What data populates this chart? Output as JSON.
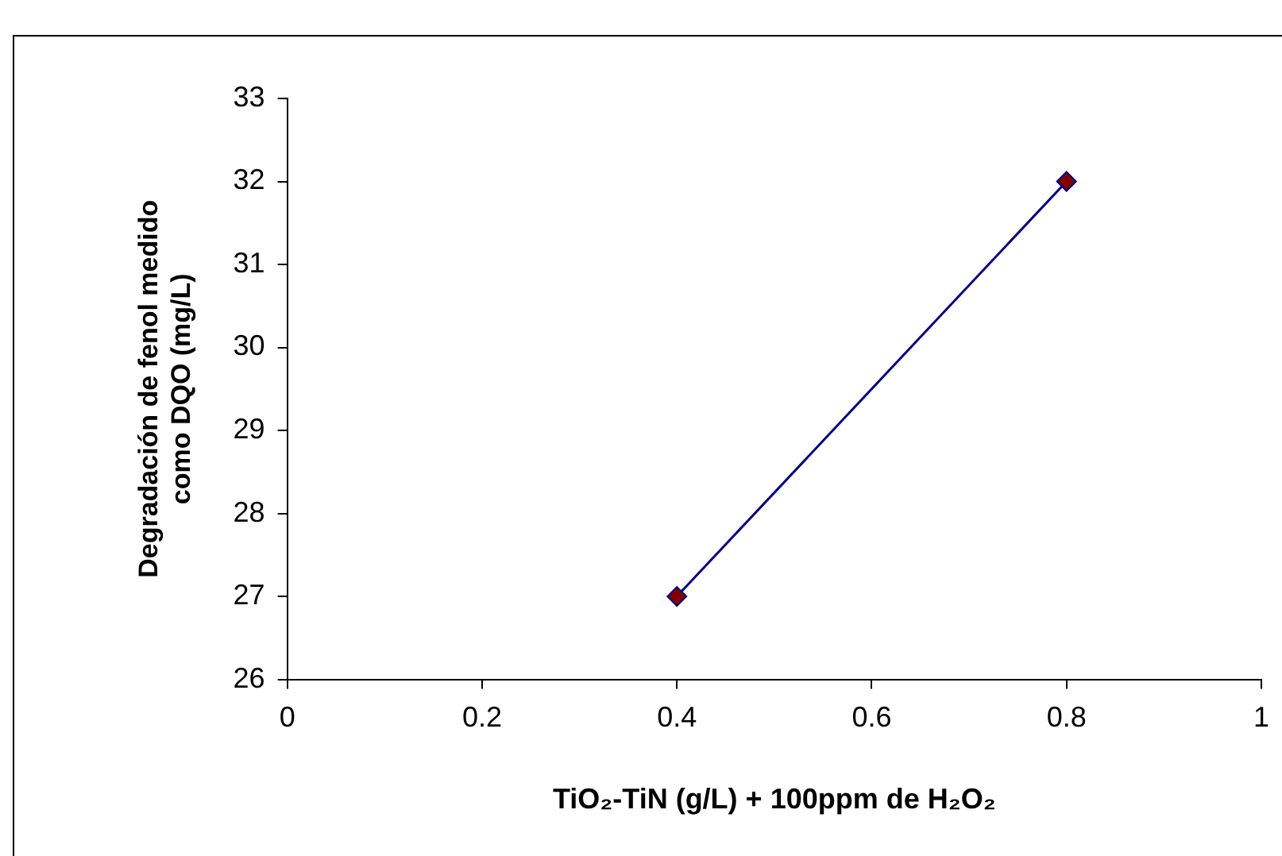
{
  "chart_data": {
    "type": "line",
    "xlabel": "TiO₂-TiN (g/L) + 100ppm de H₂O₂",
    "ylabel": "Degradación de fenol medido\ncomo DQO (mg/L)",
    "x": [
      0.4,
      0.8
    ],
    "series": [
      {
        "color": "#000080",
        "colors": [
          "#800000",
          "#800000"
        ],
        "values": [
          27,
          32
        ]
      }
    ],
    "xlim": [
      0,
      1
    ],
    "xticks": [
      0,
      0.2,
      0.4,
      0.6,
      0.8,
      1
    ],
    "ylim": [
      26,
      33
    ],
    "yticks": [
      26,
      27,
      28,
      29,
      30,
      31,
      32,
      33
    ],
    "grid": false,
    "legend": false,
    "marker": "diamond",
    "line_style": "solid"
  }
}
